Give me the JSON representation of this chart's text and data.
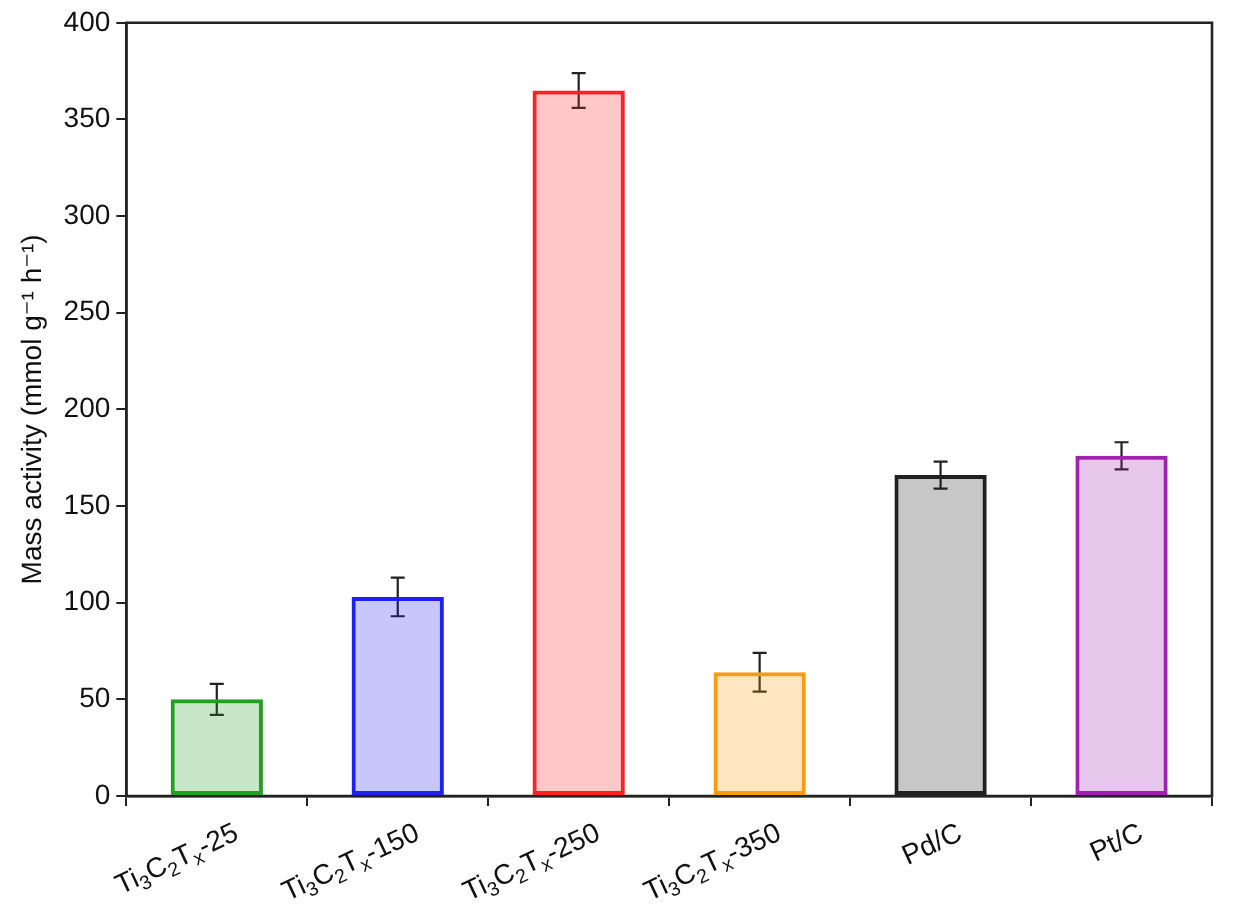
{
  "chart_data": {
    "type": "bar",
    "ylabel": "Mass activity (mmol g⁻¹ h⁻¹)",
    "categories": [
      "Ti$_{3}$C$_{2}$T$_{x}$-25",
      "Ti$_{3}$C$_{2}$T$_{x}$-150",
      "Ti$_{3}$C$_{2}$T$_{x}$-250",
      "Ti$_{3}$C$_{2}$T$_{x}$-350",
      "Pd/C",
      "Pt/C"
    ],
    "values": [
      50,
      103,
      365,
      64,
      166,
      176
    ],
    "errors": [
      8,
      10,
      9,
      10,
      7,
      7
    ],
    "colors": [
      "#22a022",
      "#2020f0",
      "#ff2020",
      "#ff9a10",
      "#202020",
      "#a020b0"
    ],
    "ylim": [
      0,
      400
    ],
    "yticks": [
      0,
      50,
      100,
      150,
      200,
      250,
      300,
      350,
      400
    ],
    "grid": false,
    "legend": false
  }
}
